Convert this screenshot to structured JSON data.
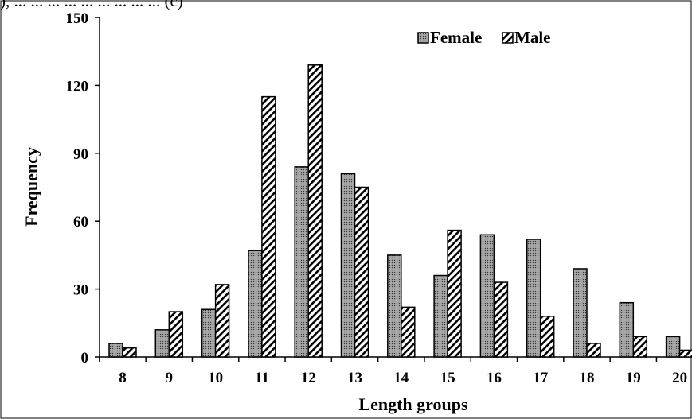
{
  "chart_data": {
    "type": "bar",
    "caption_fragment": "), ... ... ... ... ... ... ... ... ... (c)",
    "xlabel": "Length groups",
    "ylabel": "Frequency",
    "ylim": [
      0,
      150
    ],
    "yticks": [
      "0",
      "30",
      "60",
      "90",
      "120",
      "150"
    ],
    "categories": [
      "8",
      "9",
      "10",
      "11",
      "12",
      "13",
      "14",
      "15",
      "16",
      "17",
      "18",
      "19",
      "20"
    ],
    "series": [
      {
        "name": "Female",
        "pattern": "dots",
        "values": [
          6,
          12,
          21,
          47,
          84,
          81,
          45,
          36,
          54,
          52,
          39,
          24,
          9
        ]
      },
      {
        "name": "Male",
        "pattern": "diagonal-hatch",
        "values": [
          4,
          20,
          32,
          115,
          129,
          75,
          22,
          56,
          33,
          18,
          6,
          9,
          3
        ]
      }
    ],
    "legend_position": "top-right",
    "grid": false
  }
}
